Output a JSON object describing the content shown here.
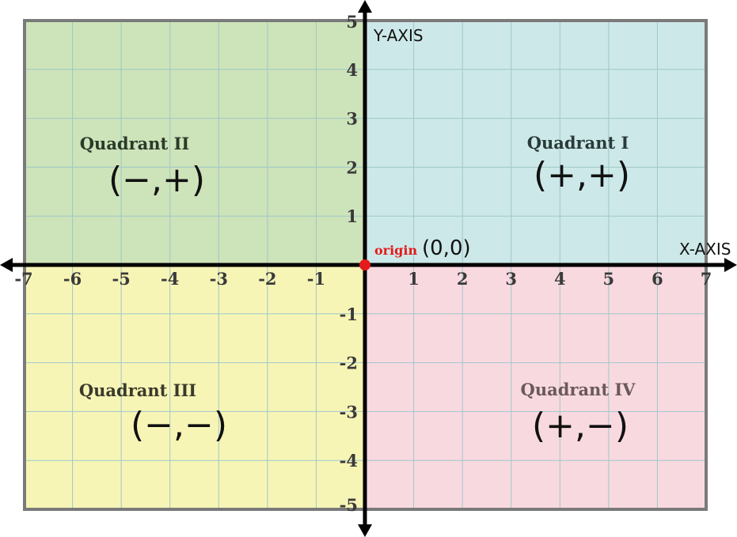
{
  "axes": {
    "x_axis_label": "X-AXIS",
    "y_axis_label": "Y-AXIS",
    "x_ticks": [
      "-7",
      "-6",
      "-5",
      "-4",
      "-3",
      "-2",
      "-1",
      "1",
      "2",
      "3",
      "4",
      "5",
      "6",
      "7"
    ],
    "y_ticks": [
      "5",
      "4",
      "3",
      "2",
      "1",
      "-1",
      "-2",
      "-3",
      "-4",
      "-5"
    ]
  },
  "origin": {
    "label": "origin",
    "coords": "(0,0)",
    "color": "#e41b1b"
  },
  "quadrants": {
    "q1": {
      "label": "Quadrant I",
      "signs": "(+,+)",
      "color": "#cce8e8",
      "text_color": "#2a3a3a"
    },
    "q2": {
      "label": "Quadrant II",
      "signs": "(−,+)",
      "color": "#cde3b9",
      "text_color": "#2a3a2a"
    },
    "q3": {
      "label": "Quadrant III",
      "signs": "(−,−)",
      "color": "#f7f5b6",
      "text_color": "#3a3a2a"
    },
    "q4": {
      "label": "Quadrant IV",
      "signs": "(+,−)",
      "color": "#f9d9e0",
      "text_color": "#6a5a5a"
    }
  }
}
